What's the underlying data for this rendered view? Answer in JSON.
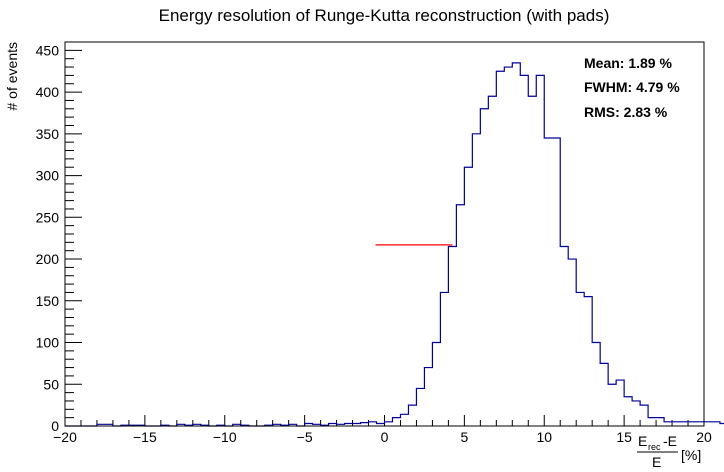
{
  "chart_data": {
    "type": "histogram",
    "title": "Energy resolution of Runge-Kutta reconstruction (with pads)",
    "ylabel": "# of events",
    "xlabel": {
      "numerator_main": "E",
      "numerator_sub": "rec",
      "numerator_rest": "-E",
      "denominator": "E",
      "unit": "[%]"
    },
    "xlim": [
      -20,
      20
    ],
    "ylim": [
      0,
      460
    ],
    "xticks": [
      "−20",
      "−15",
      "−10",
      "−5",
      "0",
      "5",
      "10",
      "15",
      "20"
    ],
    "xtick_values": [
      -20,
      -15,
      -10,
      -5,
      0,
      5,
      10,
      15,
      20
    ],
    "yticks": [
      "0",
      "50",
      "100",
      "150",
      "200",
      "250",
      "300",
      "350",
      "400",
      "450"
    ],
    "ytick_values": [
      0,
      50,
      100,
      150,
      200,
      250,
      300,
      350,
      400,
      450
    ],
    "bin_width": 0.5,
    "bin_start": -20,
    "values": [
      0,
      0,
      0,
      0,
      2,
      2,
      0,
      1,
      1,
      1,
      0,
      0,
      1,
      0,
      2,
      1,
      2,
      1,
      0,
      1,
      0,
      2,
      1,
      0,
      0,
      1,
      2,
      1,
      2,
      0,
      3,
      2,
      1,
      3,
      2,
      3,
      3,
      4,
      5,
      3,
      5,
      10,
      14,
      25,
      45,
      70,
      100,
      160,
      215,
      265,
      310,
      350,
      380,
      395,
      425,
      430,
      435,
      420,
      395,
      420,
      345,
      345,
      215,
      200,
      160,
      155,
      100,
      75,
      50,
      55,
      35,
      30,
      25,
      10,
      10,
      5,
      5,
      5,
      5,
      5,
      5,
      5,
      3,
      2,
      0,
      1,
      5,
      2,
      0,
      0
    ],
    "fwhm_line": {
      "x1": -0.56,
      "x2": 4.25,
      "y": 217,
      "color": "#ff0000"
    },
    "line_color": "#000099",
    "stats": [
      "Mean: 1.89 %",
      "FWHM: 4.79 %",
      "RMS: 2.83 %"
    ]
  }
}
